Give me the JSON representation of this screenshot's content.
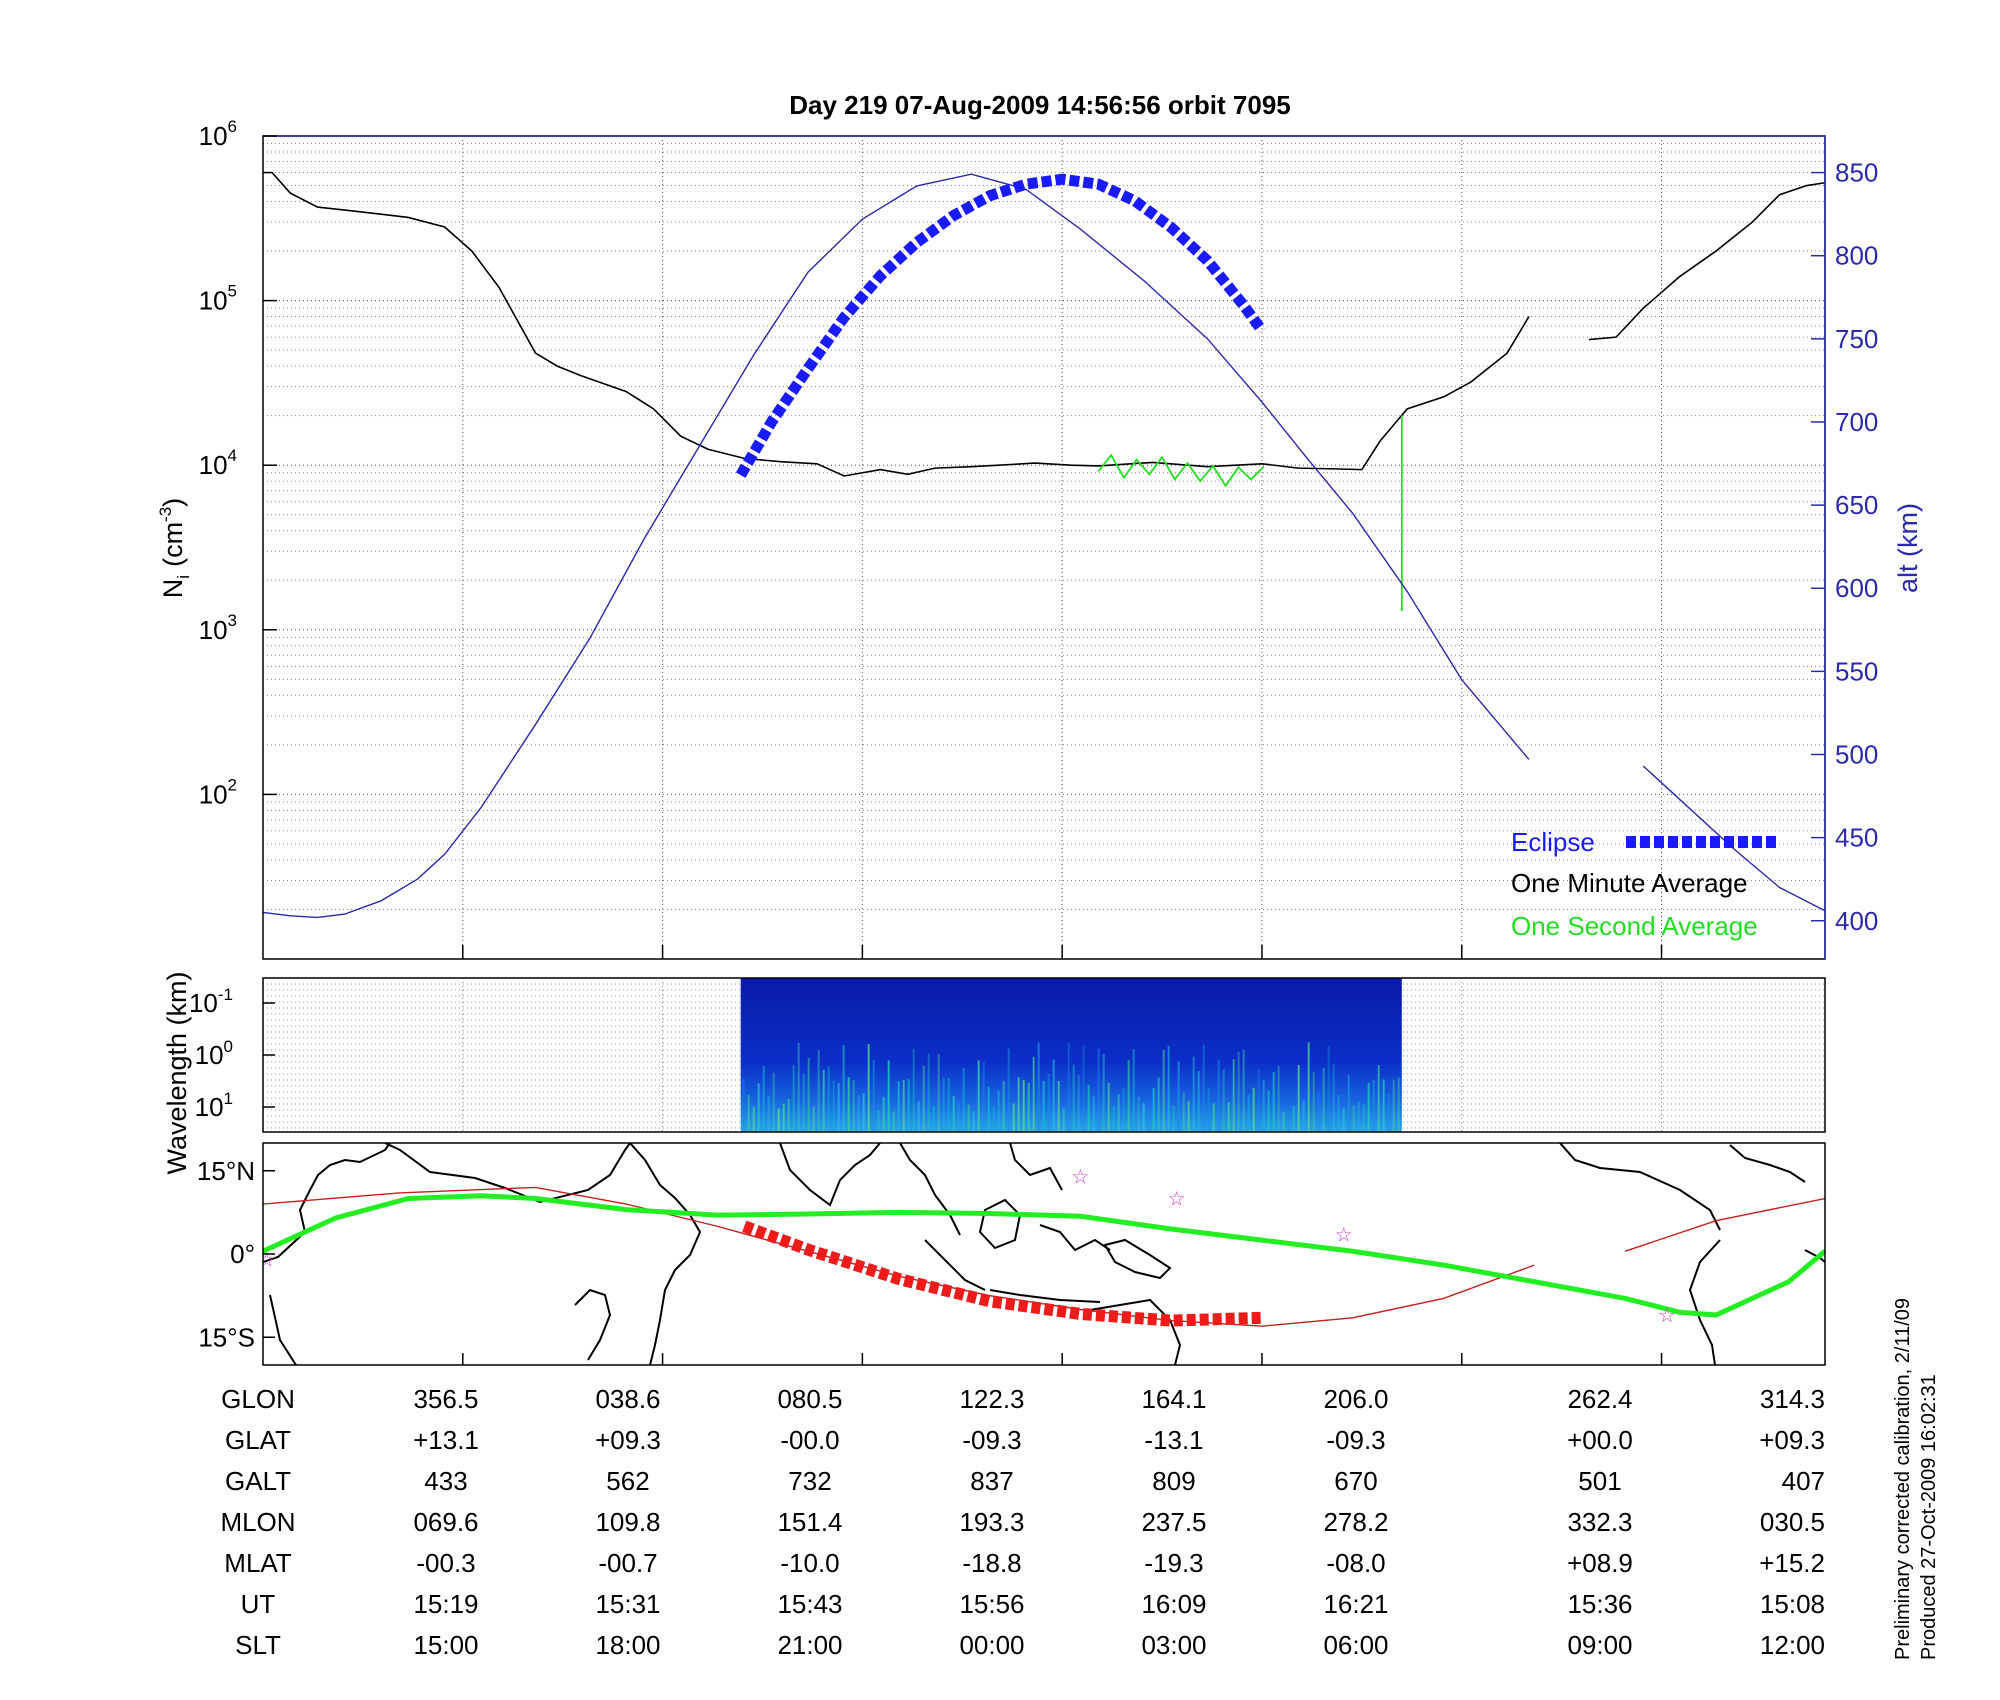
{
  "title": "Day 219  07-Aug-2009 14:56:56   orbit 7095",
  "footer": {
    "line1": "Preliminary corrected calibration, 2/11/09",
    "line2": "Produced 27-Oct-2009 16:02:31"
  },
  "colors": {
    "eclipse": "#1a1aff",
    "minute_avg": "#000000",
    "second_avg": "#22dd22",
    "altitude": "#2a2aaa",
    "ground_track": "#c42020",
    "eclipse_track": "#ee1b1b",
    "magnetic_equator": "#22ee22",
    "stars": "#cc44cc"
  },
  "chart_data": [
    {
      "type": "line",
      "ylabel": {
        "base": "N",
        "sub": "i",
        "unit": "(cm",
        "unit_sup": "-3",
        "close": ")"
      },
      "y2label": "alt (km)",
      "yscale": "log",
      "ylim": [
        10,
        1000000
      ],
      "yticks": [
        {
          "base": "10",
          "exp": "2",
          "value": 100
        },
        {
          "base": "10",
          "exp": "3",
          "value": 1000
        },
        {
          "base": "10",
          "exp": "4",
          "value": 10000
        },
        {
          "base": "10",
          "exp": "5",
          "value": 100000
        },
        {
          "base": "10",
          "exp": "6",
          "value": 1000000
        }
      ],
      "y2lim": [
        377,
        872
      ],
      "y2ticks": [
        "400",
        "450",
        "500",
        "550",
        "600",
        "650",
        "700",
        "750",
        "800",
        "850"
      ],
      "xlim": [
        0,
        8.6
      ],
      "grid": true,
      "legend": {
        "position": "bottom-right",
        "entries": [
          "Eclipse",
          "One Minute Average",
          "One Second Average"
        ]
      },
      "series": [
        {
          "name": "One Minute Average",
          "x": [
            0.0,
            0.05,
            0.15,
            0.3,
            0.5,
            0.8,
            1.0,
            1.15,
            1.3,
            1.5,
            1.62,
            1.75,
            1.85,
            2.0,
            2.15,
            2.3,
            2.45,
            2.65,
            2.85,
            3.05,
            3.2,
            3.4,
            3.55,
            3.7,
            3.9,
            4.05,
            4.25,
            4.45,
            4.6,
            4.9,
            5.2,
            5.5,
            5.7,
            5.9,
            6.05,
            6.15,
            6.3,
            6.5,
            6.65,
            6.85,
            6.97
          ],
          "y": [
            600000,
            600000,
            450000,
            370000,
            350000,
            320000,
            280000,
            200000,
            120000,
            48000,
            40000,
            35000,
            32000,
            28000,
            22000,
            15000,
            12500,
            11000,
            10500,
            10200,
            8600,
            9400,
            8800,
            9600,
            9800,
            10000,
            10300,
            10000,
            9900,
            10400,
            9800,
            10200,
            9600,
            9500,
            9400,
            14000,
            22000,
            26000,
            32000,
            48000,
            80000
          ]
        },
        {
          "name": "One Minute Average",
          "x": [
            7.3,
            7.45,
            7.6,
            7.8,
            8.0,
            8.2,
            8.35,
            8.5,
            8.6
          ],
          "y": [
            58000,
            60000,
            90000,
            140000,
            200000,
            300000,
            440000,
            500000,
            520000
          ]
        },
        {
          "name": "One Second Average",
          "x": [
            4.6,
            4.67,
            4.74,
            4.81,
            4.88,
            4.95,
            5.02,
            5.09,
            5.16,
            5.23,
            5.3,
            5.37,
            5.44,
            5.51
          ],
          "y": [
            9200,
            11500,
            8400,
            10800,
            8800,
            11200,
            8200,
            10300,
            8000,
            9900,
            7500,
            9700,
            8200,
            9800
          ]
        },
        {
          "name": "One Second Average",
          "x": [
            6.27,
            6.27,
            6.27
          ],
          "y": [
            20000,
            1300,
            9000
          ]
        },
        {
          "name": "alt (km)",
          "axis": "y2",
          "x": [
            0.0,
            0.15,
            0.3,
            0.45,
            0.65,
            0.85,
            1.0,
            1.2,
            1.5,
            1.8,
            2.1,
            2.4,
            2.7,
            3.0,
            3.3,
            3.6,
            3.9,
            4.2,
            4.5,
            4.85,
            5.2,
            5.5,
            5.75,
            6.0,
            6.3,
            6.6,
            6.97
          ],
          "y": [
            405,
            403,
            402,
            404,
            412,
            425,
            440,
            468,
            518,
            570,
            630,
            685,
            740,
            790,
            822,
            842,
            849,
            840,
            816,
            785,
            750,
            712,
            678,
            645,
            598,
            545,
            497
          ]
        },
        {
          "name": "alt (km)",
          "axis": "y2",
          "x": [
            7.6,
            7.85,
            8.1,
            8.35,
            8.6
          ],
          "y": [
            493,
            468,
            443,
            420,
            406
          ]
        },
        {
          "name": "Eclipse",
          "axis": "y2",
          "x": [
            2.63,
            2.8,
            3.0,
            3.2,
            3.4,
            3.6,
            3.8,
            4.0,
            4.2,
            4.4,
            4.6,
            4.8,
            5.0,
            5.2,
            5.4,
            5.5
          ],
          "y": [
            668,
            700,
            732,
            763,
            788,
            808,
            824,
            836,
            843,
            846,
            843,
            833,
            817,
            797,
            770,
            755
          ]
        }
      ]
    },
    {
      "type": "heatmap",
      "ylabel": "Wavelength (km)",
      "yticks": [
        {
          "base": "10",
          "exp": "-1"
        },
        {
          "base": "10",
          "exp": "0"
        },
        {
          "base": "10",
          "exp": "1"
        }
      ],
      "xrange": [
        2.63,
        6.27
      ],
      "colormap": "jet"
    },
    {
      "type": "line",
      "map": true,
      "yticks": [
        "15°N",
        "0°",
        "15°S"
      ],
      "ylim": [
        -20,
        20
      ],
      "series": [
        {
          "name": "ground track",
          "x": [
            0.0,
            0.75,
            1.5,
            2.0,
            2.5,
            3.0,
            3.5,
            4.0,
            4.5,
            5.0,
            5.5,
            6.0,
            6.5,
            7.0
          ],
          "lat": [
            9.0,
            11.0,
            12.0,
            9.0,
            5.0,
            0.5,
            -4.0,
            -7.5,
            -10.0,
            -12.0,
            -13.0,
            -11.5,
            -8.0,
            -2.0
          ]
        },
        {
          "name": "ground track",
          "x": [
            7.5,
            8.0,
            8.6
          ],
          "lat": [
            0.5,
            6.0,
            10.0
          ]
        },
        {
          "name": "eclipse track",
          "x": [
            2.65,
            3.0,
            3.5,
            4.0,
            4.5,
            5.0,
            5.5
          ],
          "lat": [
            5.0,
            0.8,
            -4.5,
            -8.5,
            -10.8,
            -12.0,
            -11.5
          ]
        },
        {
          "name": "magnetic equator",
          "x": [
            0.0,
            0.4,
            0.8,
            1.2,
            1.5,
            2.0,
            2.5,
            3.0,
            3.5,
            4.0,
            4.5,
            5.0,
            5.5,
            6.0,
            6.5,
            7.0,
            7.5,
            7.8,
            8.0,
            8.2,
            8.4,
            8.6
          ],
          "lat": [
            0.5,
            6.5,
            10.0,
            10.5,
            10.0,
            8.0,
            7.0,
            7.2,
            7.5,
            7.3,
            6.8,
            4.5,
            2.5,
            0.5,
            -2.0,
            -5.0,
            -8.0,
            -10.5,
            -11.0,
            -8.0,
            -5.0,
            0.5
          ]
        },
        {
          "name": "stars",
          "x": [
            0.02,
            4.5,
            5.03,
            5.95,
            7.73
          ],
          "lat": [
            -1.0,
            14.0,
            10.0,
            3.5,
            -11.0
          ]
        }
      ]
    }
  ],
  "table": {
    "row_labels": [
      "GLON",
      "GLAT",
      "GALT",
      "MLON",
      "MLAT",
      "UT",
      "SLT"
    ],
    "columns": [
      [
        "356.5",
        "+13.1",
        "433",
        "069.6",
        "-00.3",
        "15:19",
        "15:00"
      ],
      [
        "038.6",
        "+09.3",
        "562",
        "109.8",
        "-00.7",
        "15:31",
        "18:00"
      ],
      [
        "080.5",
        "-00.0",
        "732",
        "151.4",
        "-10.0",
        "15:43",
        "21:00"
      ],
      [
        "122.3",
        "-09.3",
        "837",
        "193.3",
        "-18.8",
        "15:56",
        "00:00"
      ],
      [
        "164.1",
        "-13.1",
        "809",
        "237.5",
        "-19.3",
        "16:09",
        "03:00"
      ],
      [
        "206.0",
        "-09.3",
        "670",
        "278.2",
        "-08.0",
        "16:21",
        "06:00"
      ],
      [
        "262.4",
        "+00.0",
        "501",
        "332.3",
        "+08.9",
        "15:36",
        "09:00"
      ],
      [
        "314.3",
        "+09.3",
        "407",
        "030.5",
        "+15.2",
        "15:08",
        "12:00"
      ]
    ]
  }
}
